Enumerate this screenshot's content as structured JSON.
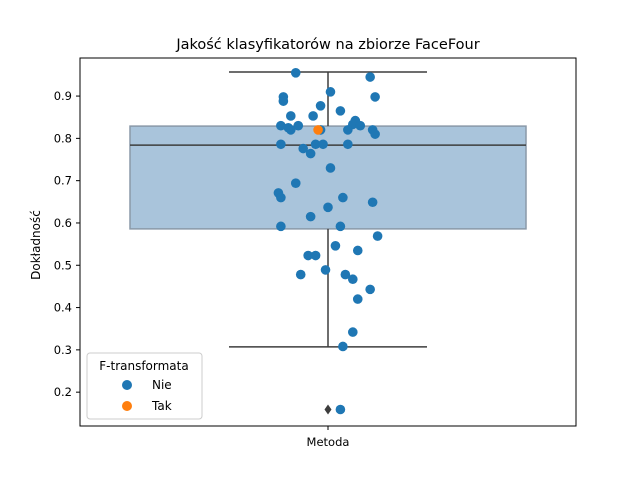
{
  "chart_data": {
    "type": "box+strip",
    "title": "Jakość klasyfikatorów na zbiorze FaceFour",
    "xlabel": "",
    "ylabel": "Dokładność",
    "categories": [
      "Metoda"
    ],
    "ylim": [
      0.12,
      0.99
    ],
    "yticks": [
      0.2,
      0.3,
      0.4,
      0.5,
      0.6,
      0.7,
      0.8,
      0.9
    ],
    "ytick_labels": [
      "0.2",
      "0.3",
      "0.4",
      "0.5",
      "0.6",
      "0.7",
      "0.8",
      "0.9"
    ],
    "box": {
      "whisker_low": 0.307,
      "q1": 0.586,
      "median": 0.784,
      "q3": 0.829,
      "whisker_high": 0.957,
      "outliers": [
        0.159
      ],
      "color": "#a9c4db"
    },
    "legend": {
      "title": "F-transformata",
      "placement": "lower-left",
      "entries": [
        {
          "label": "Nie",
          "color": "#1f77b4"
        },
        {
          "label": "Tak",
          "color": "#ff7f0e"
        }
      ]
    },
    "series": [
      {
        "name": "Nie",
        "color": "#1f77b4",
        "points": [
          {
            "x": -0.13,
            "y": 0.955
          },
          {
            "x": 0.17,
            "y": 0.945
          },
          {
            "x": 0.01,
            "y": 0.91
          },
          {
            "x": -0.18,
            "y": 0.898
          },
          {
            "x": 0.19,
            "y": 0.898
          },
          {
            "x": -0.18,
            "y": 0.888
          },
          {
            "x": -0.03,
            "y": 0.877
          },
          {
            "x": 0.05,
            "y": 0.865
          },
          {
            "x": -0.15,
            "y": 0.853
          },
          {
            "x": -0.06,
            "y": 0.853
          },
          {
            "x": 0.11,
            "y": 0.842
          },
          {
            "x": -0.19,
            "y": 0.83
          },
          {
            "x": -0.12,
            "y": 0.83
          },
          {
            "x": 0.1,
            "y": 0.833
          },
          {
            "x": 0.13,
            "y": 0.83
          },
          {
            "x": -0.15,
            "y": 0.82
          },
          {
            "x": -0.03,
            "y": 0.82
          },
          {
            "x": 0.08,
            "y": 0.82
          },
          {
            "x": 0.18,
            "y": 0.82
          },
          {
            "x": -0.16,
            "y": 0.825
          },
          {
            "x": 0.19,
            "y": 0.81
          },
          {
            "x": -0.19,
            "y": 0.786
          },
          {
            "x": -0.05,
            "y": 0.786
          },
          {
            "x": -0.02,
            "y": 0.786
          },
          {
            "x": 0.08,
            "y": 0.786
          },
          {
            "x": -0.1,
            "y": 0.776
          },
          {
            "x": -0.07,
            "y": 0.764
          },
          {
            "x": 0.01,
            "y": 0.73
          },
          {
            "x": -0.13,
            "y": 0.694
          },
          {
            "x": -0.2,
            "y": 0.671
          },
          {
            "x": -0.19,
            "y": 0.66
          },
          {
            "x": 0.06,
            "y": 0.66
          },
          {
            "x": 0.18,
            "y": 0.649
          },
          {
            "x": 0.0,
            "y": 0.637
          },
          {
            "x": -0.07,
            "y": 0.615
          },
          {
            "x": -0.19,
            "y": 0.592
          },
          {
            "x": 0.05,
            "y": 0.592
          },
          {
            "x": 0.2,
            "y": 0.569
          },
          {
            "x": 0.03,
            "y": 0.546
          },
          {
            "x": 0.12,
            "y": 0.535
          },
          {
            "x": -0.08,
            "y": 0.523
          },
          {
            "x": -0.05,
            "y": 0.523
          },
          {
            "x": -0.01,
            "y": 0.489
          },
          {
            "x": -0.11,
            "y": 0.478
          },
          {
            "x": 0.07,
            "y": 0.478
          },
          {
            "x": 0.1,
            "y": 0.467
          },
          {
            "x": 0.17,
            "y": 0.443
          },
          {
            "x": 0.12,
            "y": 0.42
          },
          {
            "x": 0.1,
            "y": 0.342
          },
          {
            "x": 0.06,
            "y": 0.308
          },
          {
            "x": 0.05,
            "y": 0.159
          }
        ]
      },
      {
        "name": "Tak",
        "color": "#ff7f0e",
        "points": [
          {
            "x": -0.04,
            "y": 0.82
          }
        ]
      }
    ]
  }
}
